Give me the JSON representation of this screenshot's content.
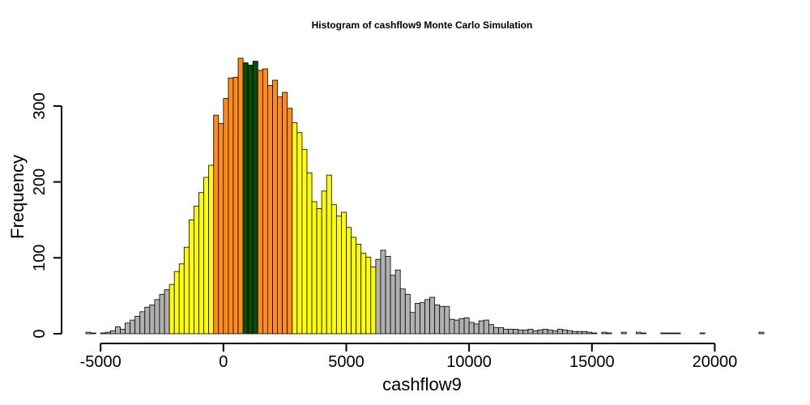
{
  "chart_data": {
    "type": "bar",
    "title": "Histogram of  cashflow9  Monte Carlo Simulation",
    "xlabel": "cashflow9",
    "ylabel": "Frequency",
    "xlim": [
      -5600,
      21800
    ],
    "ylim": [
      0,
      365
    ],
    "x_ticks": [
      -5000,
      0,
      5000,
      10000,
      15000,
      20000
    ],
    "x_tick_labels": [
      "-5000",
      "0",
      "5000",
      "10000",
      "15000",
      "20000"
    ],
    "y_ticks": [
      0,
      100,
      200,
      300
    ],
    "y_tick_labels": [
      "0",
      "100",
      "200",
      "300"
    ],
    "bin_width": 200,
    "bin_start": -5600,
    "colors": {
      "tail": "#b0b0b0",
      "outer": "#ffff00",
      "inner": "#ff8c1a",
      "center": "#0a4a0a"
    },
    "color_bands": [
      {
        "name": "tail",
        "from": -5600,
        "to": -2200
      },
      {
        "name": "outer",
        "from": -2200,
        "to": -400
      },
      {
        "name": "inner",
        "from": -400,
        "to": 800
      },
      {
        "name": "center",
        "from": 800,
        "to": 1400
      },
      {
        "name": "inner",
        "from": 1400,
        "to": 2800
      },
      {
        "name": "outer",
        "from": 2800,
        "to": 6200
      },
      {
        "name": "tail",
        "from": 6200,
        "to": 21800
      }
    ],
    "counts": [
      2,
      1,
      0,
      1,
      2,
      4,
      9,
      6,
      14,
      18,
      23,
      29,
      35,
      38,
      45,
      52,
      58,
      65,
      82,
      92,
      114,
      150,
      168,
      186,
      206,
      222,
      288,
      277,
      310,
      337,
      338,
      363,
      357,
      354,
      359,
      347,
      349,
      327,
      334,
      312,
      318,
      297,
      278,
      265,
      243,
      212,
      174,
      165,
      188,
      209,
      170,
      155,
      160,
      140,
      127,
      118,
      106,
      101,
      88,
      98,
      110,
      102,
      77,
      84,
      59,
      52,
      28,
      40,
      41,
      45,
      48,
      38,
      36,
      36,
      19,
      18,
      20,
      21,
      15,
      13,
      17,
      18,
      12,
      8,
      8,
      6,
      6,
      6,
      5,
      5,
      6,
      4,
      5,
      6,
      5,
      4,
      6,
      5,
      4,
      3,
      3,
      3,
      2,
      1,
      0,
      2,
      1,
      0,
      0,
      2,
      0,
      0,
      2,
      1,
      0,
      0,
      0,
      1,
      1,
      1,
      1,
      0,
      0,
      0,
      0,
      1,
      0,
      0,
      0,
      0,
      0,
      0,
      0,
      0,
      0,
      0,
      0,
      2
    ]
  }
}
